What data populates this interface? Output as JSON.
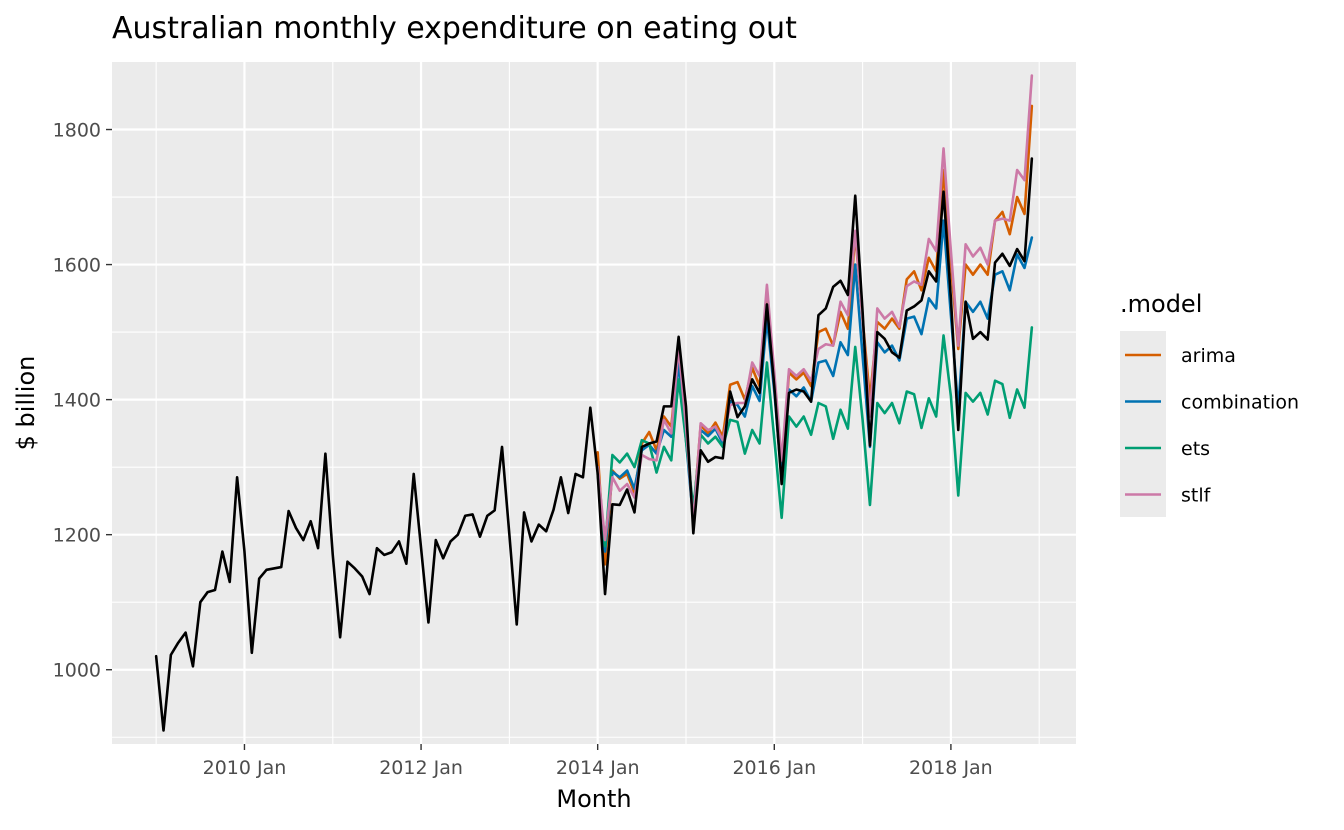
{
  "colors": {
    "panel_bg": "#EBEBEB",
    "grid": "#FFFFFF",
    "actual": "#000000",
    "arima": "#D55E00",
    "combination": "#0072B2",
    "ets": "#009E73",
    "stlf": "#CC79A7"
  },
  "chart_data": {
    "type": "line",
    "title": "Australian monthly expenditure on eating out",
    "xlabel": "Month",
    "ylabel": "$ billion",
    "x_ticks": [
      "2010 Jan",
      "2012 Jan",
      "2014 Jan",
      "2016 Jan",
      "2018 Jan"
    ],
    "y_ticks": [
      1000,
      1200,
      1400,
      1600,
      1800
    ],
    "xlim": [
      "2008 Jul",
      "2019 Jun"
    ],
    "ylim": [
      890,
      1900
    ],
    "grid": true,
    "legend": {
      "title": ".model",
      "position": "right",
      "entries": [
        "arima",
        "combination",
        "ets",
        "stlf"
      ]
    },
    "actual": {
      "start": "2009 Jan",
      "values": [
        1020,
        910,
        1022,
        1040,
        1055,
        1005,
        1100,
        1115,
        1118,
        1175,
        1130,
        1285,
        1175,
        1025,
        1135,
        1148,
        1150,
        1152,
        1235,
        1210,
        1192,
        1220,
        1180,
        1320,
        1170,
        1048,
        1160,
        1150,
        1138,
        1112,
        1180,
        1170,
        1174,
        1190,
        1157,
        1290,
        1180,
        1070,
        1192,
        1165,
        1190,
        1200,
        1228,
        1230,
        1197,
        1228,
        1236,
        1330,
        1200,
        1067,
        1233,
        1190,
        1215,
        1205,
        1237,
        1285,
        1232,
        1290,
        1285,
        1388,
        1290,
        1112,
        1245,
        1244,
        1267,
        1233,
        1330,
        1335,
        1338,
        1390,
        1390,
        1493,
        1390,
        1202,
        1325,
        1308,
        1315,
        1313,
        1412,
        1374,
        1390,
        1430,
        1410,
        1541,
        1420,
        1275,
        1410,
        1415,
        1412,
        1397,
        1525,
        1535,
        1567,
        1576,
        1555,
        1702,
        1530,
        1332,
        1500,
        1490,
        1470,
        1462,
        1532,
        1538,
        1547,
        1590,
        1575,
        1708,
        1550,
        1355,
        1545,
        1490,
        1500,
        1489,
        1603,
        1616,
        1598,
        1623,
        1605,
        1757
      ]
    },
    "series": [
      {
        "name": "arima",
        "start": "2014 Jan",
        "values": [
          1322,
          1156,
          1295,
          1283,
          1290,
          1262,
          1335,
          1352,
          1325,
          1375,
          1360,
          1470,
          1345,
          1228,
          1362,
          1350,
          1366,
          1345,
          1422,
          1426,
          1400,
          1447,
          1420,
          1545,
          1433,
          1300,
          1440,
          1430,
          1440,
          1420,
          1500,
          1505,
          1480,
          1530,
          1505,
          1645,
          1520,
          1400,
          1515,
          1505,
          1520,
          1505,
          1578,
          1590,
          1562,
          1610,
          1590,
          1740,
          1600,
          1475,
          1600,
          1585,
          1600,
          1585,
          1665,
          1678,
          1645,
          1700,
          1675,
          1835
        ]
      },
      {
        "name": "combination",
        "start": "2014 Jan",
        "values": [
          1300,
          1175,
          1293,
          1285,
          1295,
          1268,
          1325,
          1333,
          1320,
          1355,
          1345,
          1455,
          1340,
          1220,
          1355,
          1346,
          1357,
          1335,
          1398,
          1392,
          1375,
          1420,
          1398,
          1520,
          1412,
          1282,
          1415,
          1405,
          1418,
          1397,
          1455,
          1458,
          1435,
          1485,
          1466,
          1600,
          1465,
          1330,
          1485,
          1470,
          1480,
          1458,
          1520,
          1523,
          1497,
          1550,
          1535,
          1665,
          1525,
          1385,
          1545,
          1530,
          1545,
          1520,
          1585,
          1590,
          1562,
          1615,
          1595,
          1640
        ]
      },
      {
        "name": "ets",
        "start": "2014 Jan",
        "values": [
          1290,
          1183,
          1318,
          1307,
          1320,
          1300,
          1340,
          1335,
          1292,
          1330,
          1310,
          1430,
          1340,
          1238,
          1348,
          1335,
          1345,
          1330,
          1370,
          1367,
          1320,
          1355,
          1335,
          1455,
          1342,
          1225,
          1375,
          1360,
          1375,
          1348,
          1395,
          1390,
          1342,
          1385,
          1357,
          1478,
          1370,
          1244,
          1395,
          1380,
          1395,
          1365,
          1412,
          1408,
          1358,
          1402,
          1375,
          1495,
          1405,
          1258,
          1410,
          1397,
          1410,
          1378,
          1428,
          1423,
          1373,
          1415,
          1388,
          1507
        ]
      },
      {
        "name": "stlf",
        "start": "2014 Jan",
        "values": [
          1300,
          1192,
          1285,
          1265,
          1275,
          1255,
          1318,
          1312,
          1310,
          1370,
          1350,
          1478,
          1360,
          1218,
          1365,
          1355,
          1360,
          1340,
          1392,
          1395,
          1395,
          1455,
          1435,
          1570,
          1440,
          1310,
          1445,
          1435,
          1445,
          1428,
          1475,
          1482,
          1480,
          1545,
          1525,
          1650,
          1518,
          1375,
          1535,
          1520,
          1530,
          1508,
          1568,
          1575,
          1570,
          1638,
          1620,
          1772,
          1620,
          1480,
          1630,
          1612,
          1625,
          1600,
          1665,
          1668,
          1665,
          1740,
          1725,
          1880
        ]
      }
    ]
  }
}
